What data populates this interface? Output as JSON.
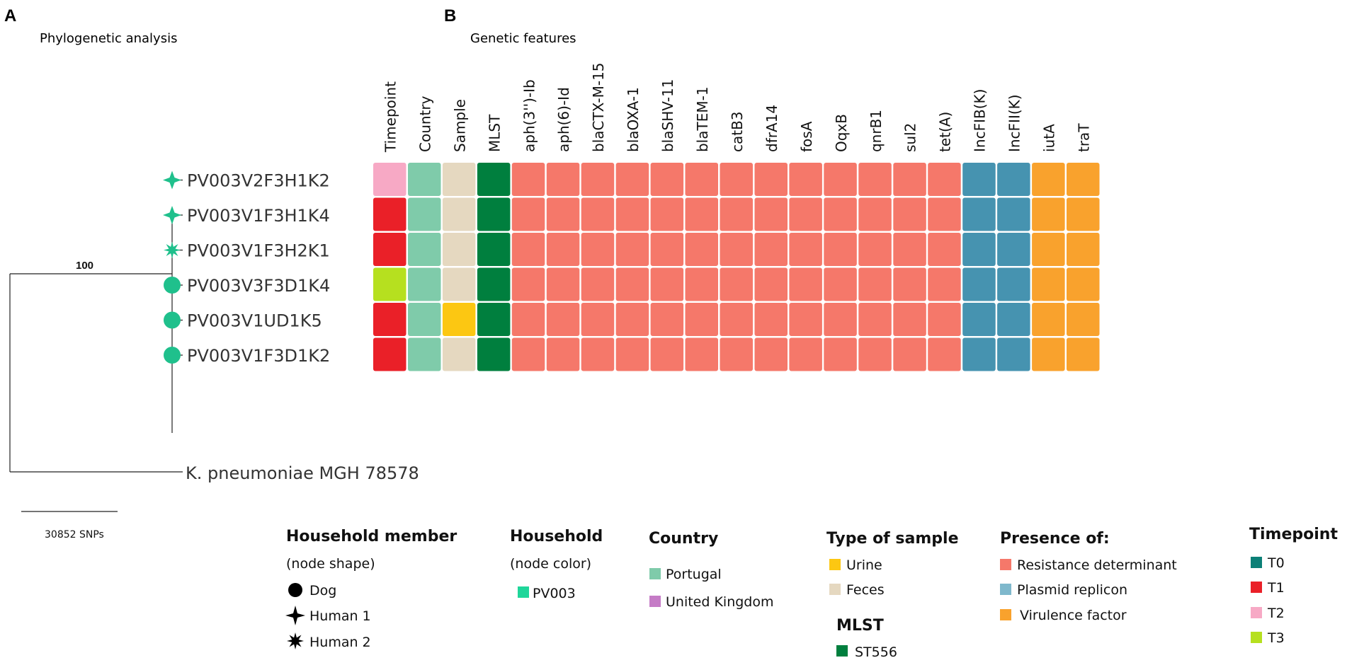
{
  "panel_a": {
    "letter": "A",
    "title": "Phylogenetic analysis",
    "bootstrap": "100",
    "scale_label": "30852 SNPs",
    "outgroup": "K. pneumoniae MGH 78578",
    "node_color": "#1fc08c",
    "leaves": [
      {
        "label": "PV003V2F3H1K2",
        "shape": "diamond-star-icon"
      },
      {
        "label": "PV003V1F3H1K4",
        "shape": "diamond-star-icon"
      },
      {
        "label": "PV003V1F3H2K1",
        "shape": "starburst-icon"
      },
      {
        "label": "PV003V3F3D1K4",
        "shape": "circle-icon"
      },
      {
        "label": "PV003V1UD1K5",
        "shape": "circle-icon"
      },
      {
        "label": "PV003V1F3D1K2",
        "shape": "circle-icon"
      }
    ]
  },
  "panel_b": {
    "letter": "B",
    "title": "Genetic features",
    "columns": [
      "Timepoint",
      "Country",
      "Sample",
      "MLST",
      "aph(3'')-Ib",
      "aph(6)-Id",
      "blaCTX-M-15",
      "blaOXA-1",
      "blaSHV-11",
      "blaTEM-1",
      "catB3",
      "dfrA14",
      "fosA",
      "OqxB",
      "qnrB1",
      "sul2",
      "tet(A)",
      "IncFIB(K)",
      "IncFII(K)",
      "iutA",
      "traT"
    ],
    "rows": [
      [
        "#f7a9c5",
        "#7fcbaa",
        "#e5d8c0",
        "#007f3e",
        "#f5786a",
        "#f5786a",
        "#f5786a",
        "#f5786a",
        "#f5786a",
        "#f5786a",
        "#f5786a",
        "#f5786a",
        "#f5786a",
        "#f5786a",
        "#f5786a",
        "#f5786a",
        "#f5786a",
        "#4693b0",
        "#4693b0",
        "#f9a22d",
        "#f9a22d"
      ],
      [
        "#ea2028",
        "#7fcbaa",
        "#e5d8c0",
        "#007f3e",
        "#f5786a",
        "#f5786a",
        "#f5786a",
        "#f5786a",
        "#f5786a",
        "#f5786a",
        "#f5786a",
        "#f5786a",
        "#f5786a",
        "#f5786a",
        "#f5786a",
        "#f5786a",
        "#f5786a",
        "#4693b0",
        "#4693b0",
        "#f9a22d",
        "#f9a22d"
      ],
      [
        "#ea2028",
        "#7fcbaa",
        "#e5d8c0",
        "#007f3e",
        "#f5786a",
        "#f5786a",
        "#f5786a",
        "#f5786a",
        "#f5786a",
        "#f5786a",
        "#f5786a",
        "#f5786a",
        "#f5786a",
        "#f5786a",
        "#f5786a",
        "#f5786a",
        "#f5786a",
        "#4693b0",
        "#4693b0",
        "#f9a22d",
        "#f9a22d"
      ],
      [
        "#b6e01f",
        "#7fcbaa",
        "#e5d8c0",
        "#007f3e",
        "#f5786a",
        "#f5786a",
        "#f5786a",
        "#f5786a",
        "#f5786a",
        "#f5786a",
        "#f5786a",
        "#f5786a",
        "#f5786a",
        "#f5786a",
        "#f5786a",
        "#f5786a",
        "#f5786a",
        "#4693b0",
        "#4693b0",
        "#f9a22d",
        "#f9a22d"
      ],
      [
        "#ea2028",
        "#7fcbaa",
        "#fcc712",
        "#007f3e",
        "#f5786a",
        "#f5786a",
        "#f5786a",
        "#f5786a",
        "#f5786a",
        "#f5786a",
        "#f5786a",
        "#f5786a",
        "#f5786a",
        "#f5786a",
        "#f5786a",
        "#f5786a",
        "#f5786a",
        "#4693b0",
        "#4693b0",
        "#f9a22d",
        "#f9a22d"
      ],
      [
        "#ea2028",
        "#7fcbaa",
        "#e5d8c0",
        "#007f3e",
        "#f5786a",
        "#f5786a",
        "#f5786a",
        "#f5786a",
        "#f5786a",
        "#f5786a",
        "#f5786a",
        "#f5786a",
        "#f5786a",
        "#f5786a",
        "#f5786a",
        "#f5786a",
        "#f5786a",
        "#4693b0",
        "#4693b0",
        "#f9a22d",
        "#f9a22d"
      ]
    ]
  },
  "legends": {
    "household_member": {
      "title": "Household member",
      "subtitle": "(node shape)",
      "items": [
        {
          "label": "Dog",
          "icon": "circle-icon"
        },
        {
          "label": "Human 1",
          "icon": "diamond-star-icon"
        },
        {
          "label": "Human 2",
          "icon": "starburst-icon"
        }
      ]
    },
    "household": {
      "title": "Household",
      "subtitle": "(node color)",
      "items": [
        {
          "label": "PV003",
          "color": "#1fd69a"
        }
      ]
    },
    "country": {
      "title": "Country",
      "items": [
        {
          "label": "Portugal",
          "color": "#7fcbaa"
        },
        {
          "label": "United Kingdom",
          "color": "#c57bc6"
        }
      ]
    },
    "sample": {
      "title": "Type of sample",
      "items": [
        {
          "label": "Urine",
          "color": "#fcc712"
        },
        {
          "label": "Feces",
          "color": "#e5d8c0"
        }
      ]
    },
    "mlst": {
      "title": "MLST",
      "items": [
        {
          "label": "ST556",
          "color": "#007f3e"
        }
      ]
    },
    "presence": {
      "title": "Presence of:",
      "items": [
        {
          "label": "Resistance determinant",
          "color": "#f5786a"
        },
        {
          "label": "Plasmid replicon",
          "color": "#7fb8cc"
        },
        {
          "label": "Virulence factor",
          "color": "#f9a22d"
        }
      ]
    },
    "timepoint": {
      "title": "Timepoint",
      "items": [
        {
          "label": "T0",
          "color": "#0c8077"
        },
        {
          "label": "T1",
          "color": "#ea2028"
        },
        {
          "label": "T2",
          "color": "#f7a9c5"
        },
        {
          "label": "T3",
          "color": "#b6e01f"
        }
      ]
    }
  }
}
